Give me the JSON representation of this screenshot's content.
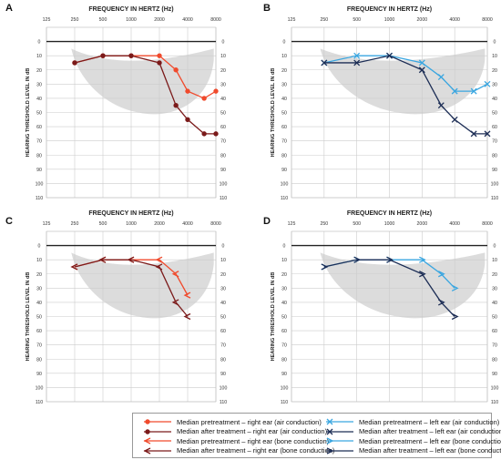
{
  "chart_data": [
    {
      "panel_label": "A",
      "type": "line",
      "title": "FREQUENCY IN HERTZ (Hz)",
      "ylabel": "HEARING THRESHOLD LEVEL IN dB",
      "x_ticks": [
        "125",
        "250",
        "500",
        "1000",
        "2000",
        "4000",
        "8000"
      ],
      "y_ticks": [
        "0",
        "10",
        "20",
        "30",
        "40",
        "50",
        "60",
        "70",
        "80",
        "90",
        "100",
        "110"
      ],
      "ylim": [
        -10,
        110
      ],
      "y_inverted": true,
      "x_scale": "log2",
      "series": [
        {
          "name": "Median pretreatment – right ear (air conduction)",
          "color": "#f04a2c",
          "marker": "circle",
          "x": [
            250,
            500,
            1000,
            2000,
            3000,
            4000,
            6000,
            8000
          ],
          "y": [
            15,
            10,
            10,
            10,
            20,
            35,
            40,
            35
          ]
        },
        {
          "name": "Median after treatment – right ear (air conduction)",
          "color": "#7b1a1a",
          "marker": "circle",
          "x": [
            250,
            500,
            1000,
            2000,
            3000,
            4000,
            6000,
            8000
          ],
          "y": [
            15,
            10,
            10,
            15,
            45,
            55,
            65,
            65
          ]
        }
      ]
    },
    {
      "panel_label": "B",
      "type": "line",
      "title": "FREQUENCY IN HERTZ (Hz)",
      "ylabel": "HEARING THRESHOLD LEVEL IN dB",
      "x_ticks": [
        "125",
        "250",
        "500",
        "1000",
        "2000",
        "4000",
        "8000"
      ],
      "y_ticks": [
        "0",
        "10",
        "20",
        "30",
        "40",
        "50",
        "60",
        "70",
        "80",
        "90",
        "100",
        "110"
      ],
      "ylim": [
        -10,
        110
      ],
      "y_inverted": true,
      "x_scale": "log2",
      "series": [
        {
          "name": "Median pretreatment – left ear (air conduction)",
          "color": "#3aa6e0",
          "marker": "x",
          "x": [
            250,
            500,
            1000,
            2000,
            3000,
            4000,
            6000,
            8000
          ],
          "y": [
            15,
            10,
            10,
            15,
            25,
            35,
            35,
            30
          ]
        },
        {
          "name": "Median after treatment – left ear (air conduction)",
          "color": "#1c2d55",
          "marker": "x",
          "x": [
            250,
            500,
            1000,
            2000,
            3000,
            4000,
            6000,
            8000
          ],
          "y": [
            15,
            15,
            10,
            20,
            45,
            55,
            65,
            65
          ]
        }
      ]
    },
    {
      "panel_label": "C",
      "type": "line",
      "title": "FREQUENCY IN HERTZ (Hz)",
      "ylabel": "HEARING THRESHOLD LEVEL IN dB",
      "x_ticks": [
        "125",
        "250",
        "500",
        "1000",
        "2000",
        "4000",
        "8000"
      ],
      "y_ticks": [
        "0",
        "10",
        "20",
        "30",
        "40",
        "50",
        "60",
        "70",
        "80",
        "90",
        "100",
        "110"
      ],
      "ylim": [
        -10,
        110
      ],
      "y_inverted": true,
      "x_scale": "log2",
      "series": [
        {
          "name": "Median pretreatment – right ear (bone conduction)",
          "color": "#f04a2c",
          "marker": "lt",
          "x": [
            250,
            500,
            1000,
            2000,
            3000,
            4000
          ],
          "y": [
            15,
            10,
            10,
            10,
            20,
            35
          ]
        },
        {
          "name": "Median after treatment – right ear (bone conduction)",
          "color": "#7b1a1a",
          "marker": "lt",
          "x": [
            250,
            500,
            1000,
            2000,
            3000,
            4000
          ],
          "y": [
            15,
            10,
            10,
            15,
            40,
            50
          ]
        }
      ]
    },
    {
      "panel_label": "D",
      "type": "line",
      "title": "FREQUENCY IN HERTZ (Hz)",
      "ylabel": "HEARING THRESHOLD LEVEL IN dB",
      "x_ticks": [
        "125",
        "250",
        "500",
        "1000",
        "2000",
        "4000",
        "8000"
      ],
      "y_ticks": [
        "0",
        "10",
        "20",
        "30",
        "40",
        "50",
        "60",
        "70",
        "80",
        "90",
        "100",
        "110"
      ],
      "ylim": [
        -10,
        110
      ],
      "y_inverted": true,
      "x_scale": "log2",
      "series": [
        {
          "name": "Median pretreatment – left ear (bone conduction)",
          "color": "#3aa6e0",
          "marker": "gt",
          "x": [
            250,
            500,
            1000,
            2000,
            3000,
            4000
          ],
          "y": [
            15,
            10,
            10,
            10,
            20,
            30
          ]
        },
        {
          "name": "Median after treatment – left ear (bone conduction)",
          "color": "#1c2d55",
          "marker": "gt",
          "x": [
            250,
            500,
            1000,
            2000,
            3000,
            4000
          ],
          "y": [
            15,
            10,
            10,
            20,
            40,
            50
          ]
        }
      ]
    }
  ],
  "legend": {
    "placement": "bottom-center",
    "entries": [
      {
        "label": "Median pretreatment – right ear (air conduction)",
        "color": "#f04a2c",
        "marker": "circle"
      },
      {
        "label": "Median after treatment – right ear (air conduction)",
        "color": "#7b1a1a",
        "marker": "circle"
      },
      {
        "label": "Median pretreatment – right ear (bone conduction)",
        "color": "#f04a2c",
        "marker": "lt"
      },
      {
        "label": "Median after treatment – right ear (bone conduction)",
        "color": "#7b1a1a",
        "marker": "lt"
      },
      {
        "label": "Median pretreatment – left ear (air conduction)",
        "color": "#3aa6e0",
        "marker": "x"
      },
      {
        "label": "Median after treatment – left ear (air conduction)",
        "color": "#1c2d55",
        "marker": "x"
      },
      {
        "label": "Median pretreatment – left ear (bone conduction)",
        "color": "#3aa6e0",
        "marker": "gt"
      },
      {
        "label": "Median after treatment – left ear (bone conduction)",
        "color": "#1c2d55",
        "marker": "gt"
      }
    ]
  },
  "colors": {
    "grid": "#cccccc",
    "axis": "#222222",
    "speech_banana": "#dcdcdc"
  }
}
